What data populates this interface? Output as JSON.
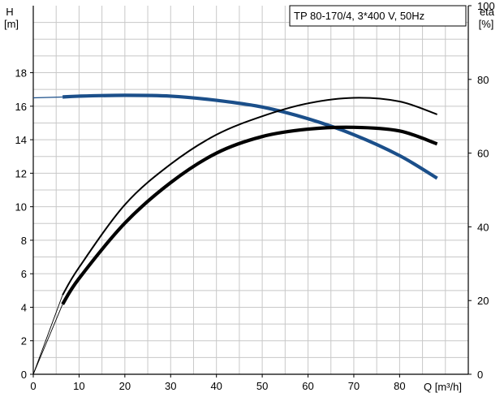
{
  "chart_data": {
    "type": "line",
    "title": "TP 80-170/4, 3*400 V, 50Hz",
    "xlabel": "Q [m³/h]",
    "ylabel_left_line1": "H",
    "ylabel_left_line2": "[m]",
    "ylabel_right_line1": "eta",
    "ylabel_right_line2": "[%]",
    "xlim": [
      0,
      95
    ],
    "ylim_left": [
      0,
      22
    ],
    "ylim_right": [
      0,
      100
    ],
    "x_ticks": [
      0,
      10,
      20,
      30,
      40,
      50,
      60,
      70,
      80
    ],
    "y_ticks_left": [
      0,
      2,
      4,
      6,
      8,
      10,
      12,
      14,
      16,
      18
    ],
    "y_ticks_right": [
      0,
      20,
      40,
      60,
      80,
      100
    ],
    "grid": true,
    "colors": {
      "head_curve": "#1b4f8a",
      "efficiency_curves": "#000000",
      "grid": "#c8c8c8"
    },
    "series": [
      {
        "axis": "left",
        "x": [
          0,
          6.4,
          10,
          20,
          30,
          40,
          50,
          60,
          70,
          80,
          88.2
        ],
        "values": [
          16.5,
          16.55,
          16.6,
          16.65,
          16.6,
          16.35,
          15.95,
          15.25,
          14.3,
          13.05,
          11.7
        ]
      },
      {
        "axis": "right",
        "x": [
          0,
          6.4,
          10,
          20,
          30,
          40,
          50,
          60,
          70,
          80,
          88.2
        ],
        "values": [
          0,
          19,
          26,
          41,
          52,
          60,
          64.5,
          66.5,
          67,
          66,
          62.5
        ]
      },
      {
        "axis": "right",
        "x": [
          0,
          6.4,
          10,
          20,
          30,
          40,
          50,
          60,
          70,
          80,
          88.2
        ],
        "values": [
          0,
          21.5,
          29,
          46,
          57,
          65,
          70,
          73.5,
          75,
          74,
          70.5
        ]
      }
    ]
  }
}
